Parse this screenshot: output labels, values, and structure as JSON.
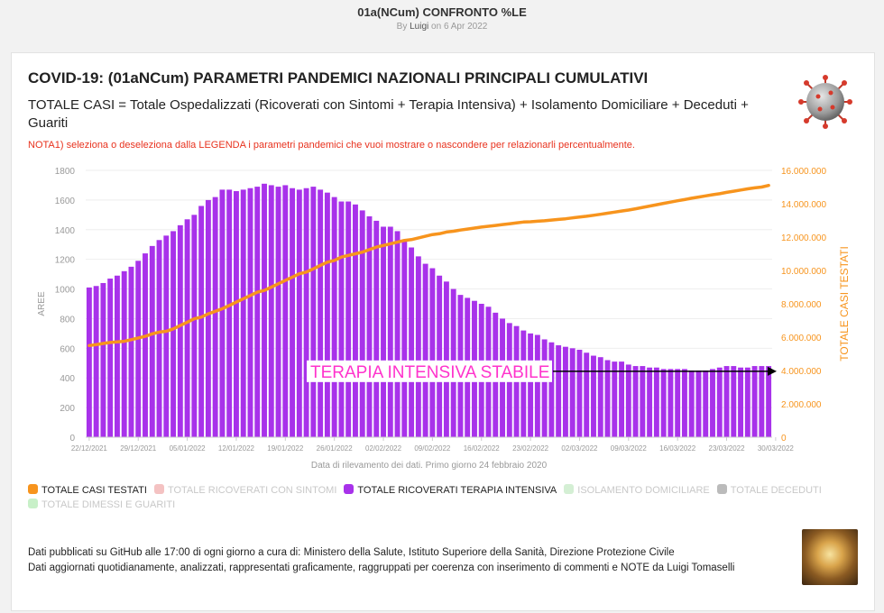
{
  "page": {
    "title": "01a(NCum) CONFRONTO %LE",
    "byline_prefix": "By",
    "author": "Luigi",
    "date": "on 6 Apr 2022"
  },
  "header": {
    "title": "COVID-19: (01aNCum) PARAMETRI PANDEMICI NAZIONALI PRINCIPALI CUMULATIVI",
    "subtitle": "TOTALE CASI = Totale Ospedalizzati (Ricoverati con Sintomi + Terapia Intensiva) + Isolamento Domiciliare + Deceduti + Guariti",
    "note": "NOTA1) seleziona o deseleziona dalla LEGENDA i parametri pandemici che vuoi mostrare o nascondere per relazionarli percentualmente."
  },
  "icons": {
    "virus": "coronavirus-icon",
    "avatar": "author-avatar"
  },
  "colors": {
    "bars": "#a832ea",
    "line": "#f7941d",
    "left_axis": "#999999",
    "right_axis": "#f7941d",
    "note": "#e8321e",
    "annotation": "#ff33cc"
  },
  "chart_data": {
    "type": "bar",
    "xlabel": "Data di rilevamento dei dati. Primo giorno 24 febbraio 2020",
    "ylabel_left": "AREE",
    "ylabel_right": "TOTALE CASI TESTATI",
    "ylim_left": [
      0,
      1800
    ],
    "ylim_right": [
      0,
      16000000
    ],
    "yticks_left": [
      "0",
      "200",
      "400",
      "600",
      "800",
      "1000",
      "1200",
      "1400",
      "1600",
      "1800"
    ],
    "yticks_right": [
      "0",
      "2.000.000",
      "4.000.000",
      "6.000.000",
      "8.000.000",
      "10.000.000",
      "12.000.000",
      "14.000.000",
      "16.000.000"
    ],
    "xtick_labels": [
      "22/12/2021",
      "29/12/2021",
      "05/01/2022",
      "12/01/2022",
      "19/01/2022",
      "26/01/2022",
      "02/02/2022",
      "09/02/2022",
      "16/02/2022",
      "23/02/2022",
      "02/03/2022",
      "09/03/2022",
      "16/03/2022",
      "23/03/2022",
      "30/03/2022"
    ],
    "annotation": "TERAPIA INTENSIVA STABILE",
    "series": [
      {
        "name": "TOTALE RICOVERATI TERAPIA INTENSIVA",
        "type": "bar",
        "axis": "left",
        "values": [
          1010,
          1020,
          1040,
          1070,
          1090,
          1120,
          1150,
          1190,
          1240,
          1290,
          1330,
          1360,
          1390,
          1430,
          1470,
          1500,
          1560,
          1600,
          1620,
          1670,
          1670,
          1660,
          1670,
          1680,
          1690,
          1710,
          1700,
          1690,
          1700,
          1680,
          1670,
          1680,
          1690,
          1670,
          1650,
          1620,
          1590,
          1590,
          1570,
          1530,
          1490,
          1460,
          1420,
          1420,
          1390,
          1330,
          1280,
          1220,
          1170,
          1140,
          1090,
          1050,
          1000,
          960,
          940,
          920,
          900,
          880,
          840,
          800,
          770,
          750,
          720,
          700,
          690,
          660,
          640,
          620,
          610,
          600,
          590,
          570,
          550,
          540,
          520,
          510,
          510,
          490,
          480,
          480,
          470,
          470,
          460,
          460,
          460,
          460,
          450,
          450,
          450,
          460,
          470,
          480,
          480,
          470,
          470,
          480,
          480,
          480
        ]
      },
      {
        "name": "TOTALE CASI TESTATI",
        "type": "line",
        "axis": "right",
        "values": [
          5500000,
          5550000,
          5620000,
          5680000,
          5720000,
          5750000,
          5850000,
          5950000,
          6050000,
          6200000,
          6300000,
          6350000,
          6500000,
          6700000,
          6900000,
          7100000,
          7200000,
          7400000,
          7550000,
          7700000,
          7900000,
          8100000,
          8300000,
          8500000,
          8700000,
          8800000,
          9000000,
          9200000,
          9400000,
          9600000,
          9800000,
          9900000,
          10100000,
          10300000,
          10500000,
          10600000,
          10800000,
          10900000,
          11000000,
          11100000,
          11250000,
          11400000,
          11500000,
          11600000,
          11700000,
          11800000,
          11850000,
          11950000,
          12050000,
          12150000,
          12200000,
          12300000,
          12350000,
          12420000,
          12480000,
          12540000,
          12600000,
          12650000,
          12700000,
          12750000,
          12800000,
          12850000,
          12900000,
          12920000,
          12950000,
          12980000,
          13020000,
          13060000,
          13100000,
          13150000,
          13200000,
          13250000,
          13310000,
          13370000,
          13430000,
          13500000,
          13560000,
          13620000,
          13700000,
          13780000,
          13860000,
          13940000,
          14020000,
          14100000,
          14180000,
          14250000,
          14330000,
          14400000,
          14470000,
          14540000,
          14600000,
          14680000,
          14750000,
          14820000,
          14890000,
          14950000,
          15000000,
          15100000
        ]
      }
    ]
  },
  "legend": {
    "items": [
      {
        "label": "TOTALE CASI TESTATI",
        "color": "#f7941d",
        "active": true
      },
      {
        "label": "TOTALE RICOVERATI CON SINTOMI",
        "color": "#f4c2c2",
        "active": false
      },
      {
        "label": "TOTALE RICOVERATI TERAPIA INTENSIVA",
        "color": "#a832ea",
        "active": true
      },
      {
        "label": "ISOLAMENTO DOMICILIARE",
        "color": "#d4efd4",
        "active": false
      },
      {
        "label": "TOTALE DECEDUTI",
        "color": "#bbbbbb",
        "active": false
      },
      {
        "label": "TOTALE DIMESSI E GUARITI",
        "color": "#c8f0c8",
        "active": false
      }
    ]
  },
  "footer": {
    "line1": "Dati pubblicati su GitHub alle 17:00 di ogni giorno a cura di: Ministero della Salute, Istituto Superiore della Sanità, Direzione Protezione Civile",
    "line2": "Dati aggiornati quotidianamente, analizzati, rappresentati graficamente, raggruppati per coerenza con inserimento di commenti e NOTE da Luigi Tomaselli"
  }
}
